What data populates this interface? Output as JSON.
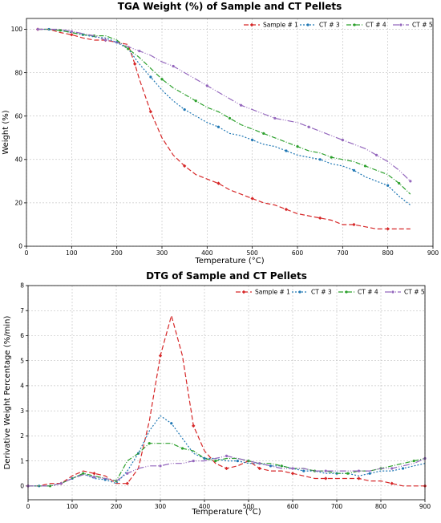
{
  "chart_data": [
    {
      "type": "line",
      "title": "TGA Weight (%) of Sample and CT Pellets",
      "xlabel": "Temperature (°C)",
      "ylabel": "Weight (%)",
      "xlim": [
        0,
        900
      ],
      "ylim": [
        0,
        105
      ],
      "xticks": [
        0,
        100,
        200,
        300,
        400,
        500,
        600,
        700,
        800,
        900
      ],
      "yticks": [
        0,
        20,
        40,
        60,
        80,
        100
      ],
      "grid": true,
      "legend": "top-right, one row",
      "series": [
        {
          "name": "Sample # 1",
          "color": "#d62728",
          "dash": "6,3",
          "marker": "diamond",
          "x": [
            25,
            50,
            75,
            100,
            125,
            150,
            175,
            200,
            225,
            240,
            250,
            260,
            275,
            300,
            325,
            350,
            375,
            400,
            425,
            450,
            475,
            500,
            525,
            550,
            575,
            600,
            625,
            650,
            675,
            700,
            725,
            750,
            775,
            800,
            825,
            850
          ],
          "y": [
            100,
            100,
            98.5,
            97.5,
            96,
            95,
            95,
            94,
            93,
            84,
            77,
            71,
            62,
            50,
            42,
            37,
            33,
            31,
            29,
            26,
            24,
            22,
            20,
            19,
            17,
            15,
            14,
            13,
            12,
            10,
            10,
            9,
            8,
            8,
            8,
            8
          ]
        },
        {
          "name": "CT # 3",
          "color": "#1f77b4",
          "dash": "2,2",
          "marker": "dot",
          "x": [
            25,
            50,
            75,
            100,
            125,
            150,
            175,
            200,
            225,
            250,
            275,
            300,
            325,
            350,
            375,
            400,
            425,
            450,
            475,
            500,
            525,
            550,
            575,
            600,
            625,
            650,
            675,
            700,
            725,
            750,
            775,
            800,
            825,
            850
          ],
          "y": [
            100,
            100,
            99.5,
            98.5,
            97.5,
            96.5,
            96,
            94,
            91,
            84,
            78,
            72,
            67,
            63,
            60,
            57,
            55,
            52,
            51,
            49,
            47,
            46,
            44,
            42,
            41,
            40,
            38,
            37,
            35,
            32,
            30,
            28,
            23,
            19
          ]
        },
        {
          "name": "CT # 4",
          "color": "#2ca02c",
          "dash": "6,2,1,2",
          "marker": "dot",
          "x": [
            25,
            50,
            75,
            100,
            125,
            150,
            175,
            200,
            225,
            250,
            275,
            300,
            325,
            350,
            375,
            400,
            425,
            450,
            475,
            500,
            525,
            550,
            575,
            600,
            625,
            650,
            675,
            700,
            725,
            750,
            775,
            800,
            825,
            850
          ],
          "y": [
            100,
            100,
            99.5,
            98.5,
            97.5,
            97,
            97,
            95,
            91,
            87,
            82,
            77,
            73,
            70,
            67,
            64,
            62,
            59,
            56,
            54,
            52,
            50,
            48,
            46,
            44,
            43,
            41,
            40,
            39,
            37,
            35,
            33,
            29,
            24
          ]
        },
        {
          "name": "CT # 5",
          "color": "#9467bd",
          "dash": "8,2,1,2,1,2",
          "marker": "dot",
          "x": [
            25,
            50,
            75,
            100,
            125,
            150,
            175,
            200,
            225,
            250,
            275,
            300,
            325,
            350,
            375,
            400,
            425,
            450,
            475,
            500,
            525,
            550,
            575,
            600,
            625,
            650,
            675,
            700,
            725,
            750,
            775,
            800,
            825,
            850
          ],
          "y": [
            100,
            100,
            100,
            99,
            98,
            97,
            95,
            94,
            92,
            90,
            88,
            85,
            83,
            80,
            77,
            74,
            71,
            68,
            65,
            63,
            61,
            59,
            58,
            57,
            55,
            53,
            51,
            49,
            47,
            45,
            42,
            39,
            35,
            30
          ]
        }
      ]
    },
    {
      "type": "line",
      "title": "DTG of Sample and CT Pellets",
      "xlabel": "Temperature (°C)",
      "ylabel": "Derivative Weight Percentage (%/min)",
      "xlim": [
        0,
        900
      ],
      "ylim": [
        -0.55,
        8
      ],
      "xticks": [
        0,
        100,
        200,
        300,
        400,
        500,
        600,
        700,
        800,
        900
      ],
      "yticks": [
        0,
        1,
        2,
        3,
        4,
        5,
        6,
        7,
        8
      ],
      "grid": true,
      "legend": "top-right, one row",
      "series": [
        {
          "name": "Sample # 1",
          "color": "#d62728",
          "dash": "6,3",
          "marker": "diamond",
          "x": [
            0,
            25,
            50,
            75,
            100,
            125,
            150,
            175,
            200,
            225,
            250,
            275,
            300,
            325,
            350,
            375,
            400,
            425,
            450,
            475,
            500,
            525,
            550,
            575,
            600,
            625,
            650,
            675,
            700,
            725,
            750,
            775,
            800,
            825,
            850,
            875,
            900
          ],
          "y": [
            0,
            0,
            0.1,
            0.1,
            0.4,
            0.6,
            0.5,
            0.4,
            0.1,
            0.1,
            0.7,
            2.6,
            5.2,
            6.8,
            5.2,
            2.4,
            1.4,
            0.9,
            0.7,
            0.8,
            1.0,
            0.7,
            0.6,
            0.6,
            0.5,
            0.4,
            0.3,
            0.3,
            0.3,
            0.3,
            0.3,
            0.2,
            0.2,
            0.1,
            0.0,
            0.0,
            0.0
          ]
        },
        {
          "name": "CT # 3",
          "color": "#1f77b4",
          "dash": "2,2",
          "marker": "dot",
          "x": [
            0,
            25,
            50,
            75,
            100,
            125,
            150,
            175,
            200,
            225,
            250,
            275,
            300,
            325,
            350,
            375,
            400,
            425,
            450,
            475,
            500,
            525,
            550,
            575,
            600,
            625,
            650,
            675,
            700,
            725,
            750,
            775,
            800,
            825,
            850,
            875,
            900
          ],
          "y": [
            0,
            0,
            0,
            0.1,
            0.3,
            0.5,
            0.3,
            0.25,
            0.1,
            0.6,
            1.3,
            2.2,
            2.8,
            2.5,
            1.9,
            1.3,
            1.1,
            1.1,
            1.0,
            1.0,
            0.9,
            0.9,
            0.8,
            0.8,
            0.7,
            0.6,
            0.6,
            0.5,
            0.5,
            0.5,
            0.4,
            0.5,
            0.6,
            0.6,
            0.7,
            0.8,
            0.9
          ]
        },
        {
          "name": "CT # 4",
          "color": "#2ca02c",
          "dash": "6,2,1,2",
          "marker": "dot",
          "x": [
            0,
            25,
            50,
            75,
            100,
            125,
            150,
            175,
            200,
            225,
            250,
            275,
            300,
            325,
            350,
            375,
            400,
            425,
            450,
            475,
            500,
            525,
            550,
            575,
            600,
            625,
            650,
            675,
            700,
            725,
            750,
            775,
            800,
            825,
            850,
            875,
            900
          ],
          "y": [
            0,
            0,
            0,
            0.1,
            0.3,
            0.5,
            0.4,
            0.3,
            0.2,
            1.0,
            1.3,
            1.7,
            1.7,
            1.7,
            1.5,
            1.4,
            1.1,
            1.0,
            1.1,
            1.1,
            1.0,
            0.9,
            0.9,
            0.8,
            0.7,
            0.7,
            0.6,
            0.6,
            0.5,
            0.5,
            0.6,
            0.6,
            0.7,
            0.8,
            0.9,
            1.0,
            1.1
          ]
        },
        {
          "name": "CT # 5",
          "color": "#9467bd",
          "dash": "8,2,1,2,1,2",
          "marker": "dot",
          "x": [
            0,
            25,
            50,
            75,
            100,
            125,
            150,
            175,
            200,
            225,
            250,
            275,
            300,
            325,
            350,
            375,
            400,
            425,
            450,
            475,
            500,
            525,
            550,
            575,
            600,
            625,
            650,
            675,
            700,
            725,
            750,
            775,
            800,
            825,
            850,
            875,
            900
          ],
          "y": [
            0,
            0,
            0,
            0.1,
            0.3,
            0.45,
            0.35,
            0.3,
            0.2,
            0.5,
            0.7,
            0.8,
            0.8,
            0.9,
            0.9,
            1.0,
            1.0,
            1.1,
            1.2,
            1.1,
            1.0,
            0.9,
            0.8,
            0.7,
            0.7,
            0.7,
            0.6,
            0.6,
            0.6,
            0.6,
            0.6,
            0.6,
            0.7,
            0.7,
            0.8,
            0.9,
            1.1
          ]
        }
      ]
    }
  ]
}
